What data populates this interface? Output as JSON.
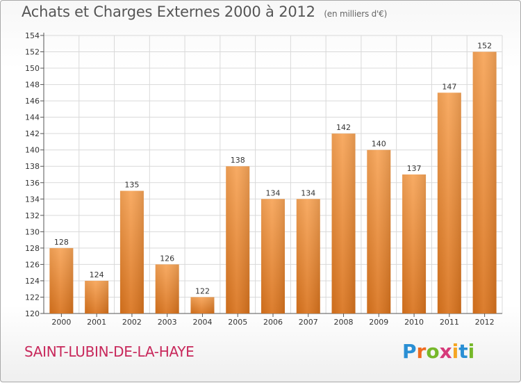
{
  "header": {
    "title": "Achats et Charges Externes 2000 à 2012",
    "subtitle": "(en milliers d'€)"
  },
  "footer": {
    "commune": "SAINT-LUBIN-DE-LA-HAYE",
    "brand_letters": [
      "P",
      "r",
      "o",
      "x",
      "i",
      "t",
      "i"
    ],
    "brand_colors": [
      "#2a8fd4",
      "#ef6b1f",
      "#76b82a",
      "#d63a7a",
      "#f5a623",
      "#2a8fd4",
      "#76b82a"
    ]
  },
  "chart_data": {
    "type": "bar",
    "categories": [
      "2000",
      "2001",
      "2002",
      "2003",
      "2004",
      "2005",
      "2006",
      "2007",
      "2008",
      "2009",
      "2010",
      "2011",
      "2012"
    ],
    "values": [
      128,
      124,
      135,
      126,
      122,
      138,
      134,
      134,
      142,
      140,
      137,
      147,
      152
    ],
    "ylim": [
      120,
      154
    ],
    "yticks": [
      120,
      122,
      124,
      126,
      128,
      130,
      132,
      134,
      136,
      138,
      140,
      142,
      144,
      146,
      148,
      150,
      152,
      154
    ],
    "grid": true,
    "bar_color_top": "#f7a457",
    "bar_color_bottom": "#d9731d",
    "grid_color": "#d9d9d9"
  }
}
